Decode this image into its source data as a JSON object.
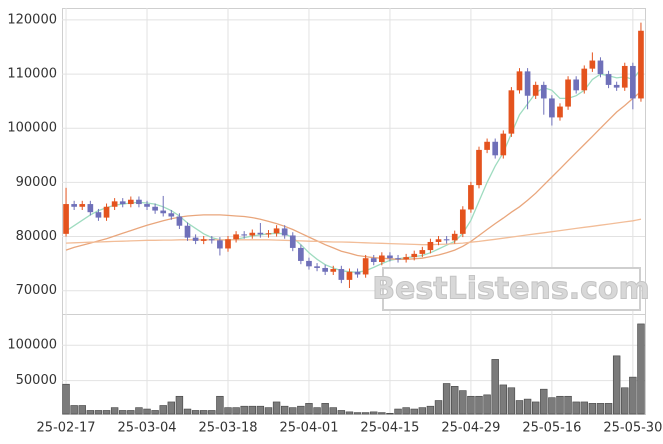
{
  "watermark": "BestListens.com",
  "chart_data": {
    "type": "candlestick",
    "categories": [
      "25-02-17",
      null,
      null,
      null,
      null,
      null,
      null,
      null,
      null,
      null,
      "25-03-04",
      null,
      null,
      null,
      null,
      null,
      null,
      null,
      null,
      null,
      "25-03-18",
      null,
      null,
      null,
      null,
      null,
      null,
      null,
      null,
      null,
      "25-04-01",
      null,
      null,
      null,
      null,
      null,
      null,
      null,
      null,
      null,
      "25-04-15",
      null,
      null,
      null,
      null,
      null,
      null,
      null,
      null,
      null,
      "25-04-29",
      null,
      null,
      null,
      null,
      null,
      null,
      null,
      null,
      null,
      "25-05-16",
      null,
      null,
      null,
      null,
      null,
      null,
      null,
      null,
      null,
      "25-05-30",
      null
    ],
    "open": [
      80500,
      86000,
      85500,
      86000,
      84500,
      83500,
      85500,
      86500,
      86000,
      86800,
      86000,
      85500,
      84800,
      84300,
      83700,
      82000,
      79800,
      79200,
      79500,
      79300,
      77800,
      79500,
      80400,
      80200,
      80700,
      80400,
      80600,
      81500,
      80200,
      77900,
      75500,
      74500,
      74200,
      73500,
      74000,
      72000,
      73500,
      73000,
      76000,
      75300,
      76500,
      76000,
      75800,
      76200,
      76800,
      77500,
      79000,
      79500,
      79300,
      80500,
      85000,
      89500,
      96000,
      97500,
      95000,
      99000,
      107000,
      110500,
      106000,
      108000,
      105500,
      102000,
      104000,
      109000,
      107000,
      111000,
      112500,
      110000,
      108000,
      107500,
      111500,
      105500
    ],
    "high": [
      89000,
      86600,
      86600,
      86600,
      85100,
      86100,
      87100,
      87100,
      87400,
      87400,
      86600,
      86100,
      87500,
      84900,
      84300,
      82600,
      80400,
      80100,
      80100,
      79900,
      80100,
      81000,
      81000,
      81300,
      82500,
      81200,
      82100,
      82100,
      80800,
      78500,
      76100,
      75100,
      74800,
      74600,
      74600,
      74100,
      74100,
      76600,
      76600,
      77100,
      77100,
      76600,
      76800,
      77400,
      78100,
      79600,
      80100,
      80100,
      81100,
      85600,
      90100,
      96600,
      98100,
      98100,
      99600,
      107600,
      111100,
      111100,
      108600,
      108600,
      106100,
      104600,
      109600,
      109600,
      111600,
      114000,
      113100,
      110600,
      108600,
      112100,
      112100,
      119500
    ],
    "low": [
      80000,
      84900,
      84900,
      83900,
      82900,
      82900,
      84900,
      85400,
      85400,
      85400,
      84900,
      84200,
      83700,
      83100,
      81400,
      79200,
      78600,
      78600,
      78700,
      76500,
      77200,
      78900,
      79600,
      79600,
      79800,
      79800,
      80000,
      79600,
      77300,
      74900,
      73900,
      73600,
      72900,
      72900,
      71400,
      70500,
      72400,
      72400,
      74700,
      74700,
      75400,
      75200,
      75200,
      75600,
      76200,
      76900,
      78400,
      78700,
      78700,
      79900,
      84400,
      88900,
      95400,
      94400,
      94400,
      98400,
      106400,
      103500,
      105400,
      102500,
      100500,
      101400,
      103400,
      106400,
      106400,
      110400,
      109400,
      107400,
      106900,
      106900,
      103500,
      104900
    ],
    "close": [
      86000,
      85500,
      86000,
      84500,
      83500,
      85500,
      86500,
      86000,
      86800,
      86000,
      85500,
      84800,
      84300,
      83700,
      82000,
      79800,
      79200,
      79500,
      79300,
      77800,
      79500,
      80400,
      80200,
      80700,
      80400,
      80600,
      81500,
      80200,
      77900,
      75500,
      74500,
      74200,
      73500,
      74000,
      72000,
      73500,
      73000,
      76000,
      75300,
      76500,
      76000,
      75800,
      76200,
      76800,
      77500,
      79000,
      79500,
      79300,
      80500,
      85000,
      89500,
      96000,
      97500,
      95000,
      99000,
      107000,
      110500,
      106000,
      108000,
      105500,
      102000,
      104000,
      109000,
      107000,
      111000,
      112500,
      110000,
      108000,
      107500,
      111500,
      105500,
      118000
    ],
    "up_color": "#e4531e",
    "down_color": "#6f70b9",
    "series": [
      {
        "color": "#9fdcc0",
        "values": [
          81000,
          82000,
          83000,
          84000,
          84800,
          85300,
          85800,
          86000,
          86200,
          86300,
          86200,
          86000,
          85500,
          84800,
          83800,
          82500,
          81500,
          80500,
          79800,
          79400,
          79300,
          79500,
          79800,
          80100,
          80300,
          80500,
          80600,
          80500,
          79800,
          78500,
          77000,
          75800,
          74800,
          74200,
          73700,
          73500,
          73400,
          73700,
          74300,
          75000,
          75600,
          75900,
          76100,
          76300,
          76500,
          77000,
          77700,
          78400,
          79100,
          80600,
          83000,
          86500,
          90000,
          93000,
          95500,
          99000,
          102500,
          104500,
          106500,
          107500,
          107000,
          105500,
          105500,
          106000,
          107000,
          109000,
          110000,
          109700,
          109300,
          109500,
          109000,
          111000
        ]
      },
      {
        "color": "#e9a67c",
        "values": [
          77500,
          78000,
          78400,
          78800,
          79200,
          79600,
          80100,
          80600,
          81100,
          81600,
          82100,
          82500,
          82900,
          83300,
          83600,
          83800,
          83900,
          84000,
          84000,
          84000,
          83900,
          83800,
          83700,
          83500,
          83200,
          82800,
          82400,
          81900,
          81300,
          80600,
          79900,
          79200,
          78500,
          77900,
          77300,
          76900,
          76500,
          76300,
          76100,
          76000,
          75900,
          75800,
          75800,
          75900,
          76000,
          76300,
          76600,
          77000,
          77500,
          78200,
          79100,
          80200,
          81300,
          82400,
          83400,
          84500,
          85500,
          86700,
          88000,
          89500,
          91000,
          92500,
          94000,
          95500,
          97000,
          98500,
          100000,
          101500,
          103000,
          104200,
          105500,
          106800
        ]
      },
      {
        "color": "#f2bd98",
        "values": [
          78800,
          78850,
          78900,
          78950,
          79000,
          79050,
          79100,
          79150,
          79200,
          79250,
          79300,
          79300,
          79350,
          79350,
          79400,
          79400,
          79400,
          79400,
          79400,
          79400,
          79400,
          79400,
          79400,
          79400,
          79400,
          79400,
          79350,
          79300,
          79250,
          79200,
          79150,
          79100,
          79050,
          79000,
          79000,
          78950,
          78900,
          78850,
          78800,
          78750,
          78700,
          78650,
          78600,
          78550,
          78500,
          78500,
          78550,
          78600,
          78700,
          78800,
          78950,
          79100,
          79300,
          79500,
          79700,
          79900,
          80100,
          80300,
          80500,
          80700,
          80900,
          81100,
          81300,
          81500,
          81700,
          81900,
          82100,
          82300,
          82500,
          82700,
          82900,
          83200
        ]
      }
    ],
    "ylim": [
      65700,
      122200
    ],
    "yticks": [
      70000,
      80000,
      90000,
      100000,
      110000,
      120000
    ],
    "grid": true,
    "volume": {
      "color": "#7b7b7b",
      "values": [
        45000,
        15000,
        15000,
        8000,
        8000,
        8000,
        12000,
        8000,
        8000,
        12000,
        10000,
        8000,
        15000,
        20000,
        28000,
        10000,
        8000,
        8000,
        8000,
        28000,
        12000,
        12000,
        14000,
        14000,
        14000,
        12000,
        20000,
        14000,
        12000,
        14000,
        18000,
        12000,
        18000,
        12000,
        8000,
        6000,
        5000,
        5000,
        6000,
        5000,
        4000,
        10000,
        12000,
        10000,
        12000,
        14000,
        22000,
        46000,
        42000,
        36000,
        28000,
        28000,
        30000,
        80000,
        44000,
        40000,
        22000,
        24000,
        20000,
        38000,
        26000,
        28000,
        28000,
        20000,
        20000,
        18000,
        18000,
        18000,
        85000,
        40000,
        55000,
        130000
      ],
      "ylim": [
        3000,
        144000
      ],
      "yticks": [
        50000,
        100000
      ]
    }
  }
}
